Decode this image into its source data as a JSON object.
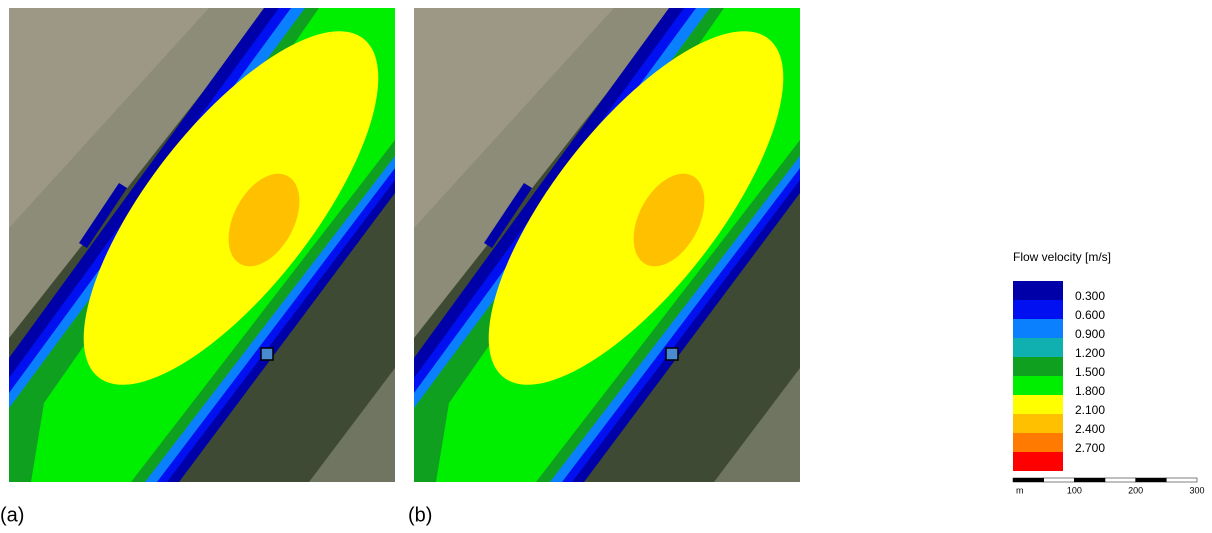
{
  "panels": [
    {
      "label": "(a)"
    },
    {
      "label": "(b)"
    }
  ],
  "legend": {
    "title": "Flow velocity [m/s]",
    "colors": [
      "#0000a8",
      "#0010f0",
      "#0a80ff",
      "#10b0b0",
      "#10a020",
      "#00ee00",
      "#ffff00",
      "#ffc000",
      "#ff7a00",
      "#ff0000"
    ],
    "labels": [
      "0.300",
      "0.600",
      "0.900",
      "1.200",
      "1.500",
      "1.800",
      "2.100",
      "2.400",
      "2.700"
    ]
  },
  "scale_bar": {
    "labels": [
      "m",
      "100",
      "200",
      "300"
    ]
  }
}
